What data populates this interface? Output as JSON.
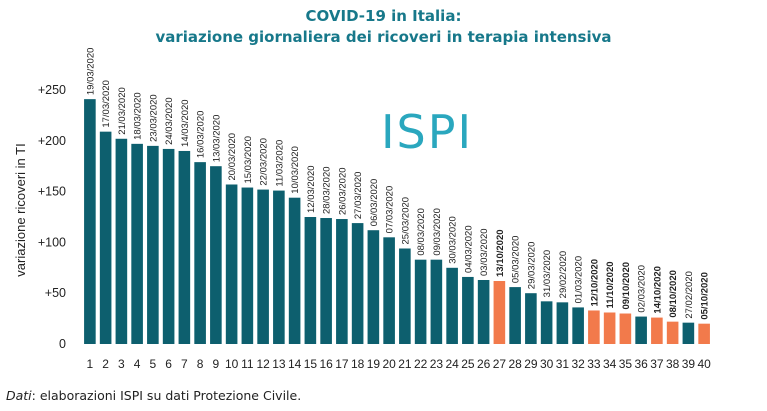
{
  "chart_data": {
    "type": "bar",
    "title": "COVID-19 in Italia:",
    "subtitle": "variazione giornaliera dei ricoveri in terapia intensiva",
    "ylabel": "variazione ricoveri in TI",
    "ylim": [
      0,
      250
    ],
    "yticks": [
      "0",
      "+50",
      "+100",
      "+150",
      "+200",
      "+250"
    ],
    "categories": [
      "1",
      "2",
      "3",
      "4",
      "5",
      "6",
      "7",
      "8",
      "9",
      "10",
      "11",
      "12",
      "13",
      "14",
      "15",
      "16",
      "17",
      "18",
      "19",
      "20",
      "21",
      "22",
      "23",
      "24",
      "25",
      "26",
      "27",
      "28",
      "29",
      "30",
      "31",
      "32",
      "33",
      "34",
      "35",
      "36",
      "37",
      "38",
      "39",
      "40"
    ],
    "dates": [
      "19/03/2020",
      "17/03/2020",
      "21/03/2020",
      "18/03/2020",
      "23/03/2020",
      "24/03/2020",
      "14/03/2020",
      "16/03/2020",
      "13/03/2020",
      "20/03/2020",
      "15/03/2020",
      "22/03/2020",
      "11/03/2020",
      "10/03/2020",
      "12/03/2020",
      "28/03/2020",
      "26/03/2020",
      "27/03/2020",
      "06/03/2020",
      "07/03/2020",
      "25/03/2020",
      "08/03/2020",
      "09/03/2020",
      "30/03/2020",
      "04/03/2020",
      "03/03/2020",
      "13/10/2020",
      "05/03/2020",
      "29/03/2020",
      "31/03/2020",
      "29/02/2020",
      "01/03/2020",
      "12/10/2020",
      "11/10/2020",
      "09/10/2020",
      "02/03/2020",
      "14/10/2020",
      "08/10/2020",
      "27/02/2020",
      "05/10/2020"
    ],
    "values": [
      241,
      209,
      202,
      197,
      195,
      192,
      190,
      179,
      175,
      157,
      154,
      152,
      151,
      144,
      125,
      124,
      123,
      119,
      112,
      105,
      94,
      83,
      83,
      75,
      66,
      63,
      62,
      56,
      50,
      42,
      41,
      36,
      33,
      31,
      30,
      27,
      26,
      22,
      21,
      20
    ],
    "highlight": [
      false,
      false,
      false,
      false,
      false,
      false,
      false,
      false,
      false,
      false,
      false,
      false,
      false,
      false,
      false,
      false,
      false,
      false,
      false,
      false,
      false,
      false,
      false,
      false,
      false,
      false,
      true,
      false,
      false,
      false,
      false,
      false,
      true,
      true,
      true,
      false,
      true,
      true,
      false,
      true
    ],
    "colors": {
      "bar": "#0d5f6e",
      "highlight": "#f27a4b",
      "title": "#17788a",
      "watermark": "#2aa7be"
    },
    "legend": "none",
    "grid": false
  },
  "watermark": "ISPI",
  "source": {
    "label": "Dati",
    "text": ": elaborazioni ISPI su dati Protezione Civile."
  }
}
